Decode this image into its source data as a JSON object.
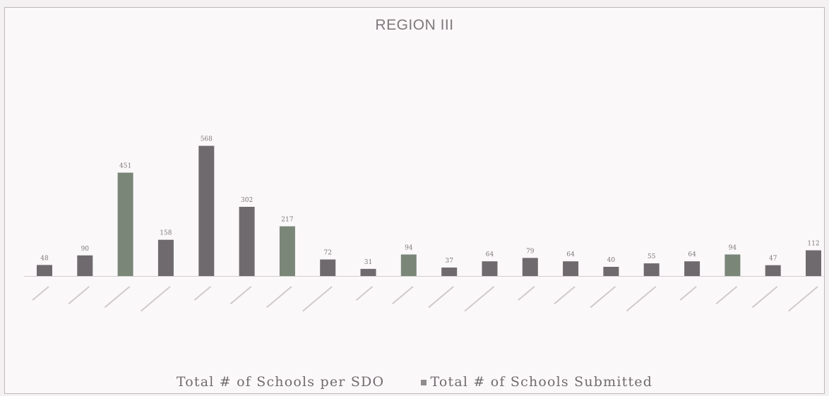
{
  "chart_data": {
    "type": "bar",
    "title": "REGION III",
    "categories": [
      "",
      "",
      "",
      "",
      "",
      "",
      "",
      "",
      "",
      "",
      "",
      "",
      "",
      "",
      "",
      "",
      "",
      "",
      "",
      ""
    ],
    "series": [
      {
        "name": "Total # of Schools Submitted",
        "values": [
          48,
          90,
          451,
          158,
          568,
          302,
          217,
          72,
          31,
          94,
          37,
          64,
          79,
          64,
          40,
          55,
          64,
          94,
          47,
          112
        ]
      }
    ],
    "legend": [
      "Total # of Schools per SDO",
      "Total # of Schools Submitted"
    ],
    "legend_position": "bottom",
    "colors": {
      "bar_dark": "#6e6a6d",
      "bar_green": "#7a8778",
      "legend_swatch": "#8e8a8d"
    },
    "ylim": [
      0,
      650
    ],
    "grid": false
  }
}
